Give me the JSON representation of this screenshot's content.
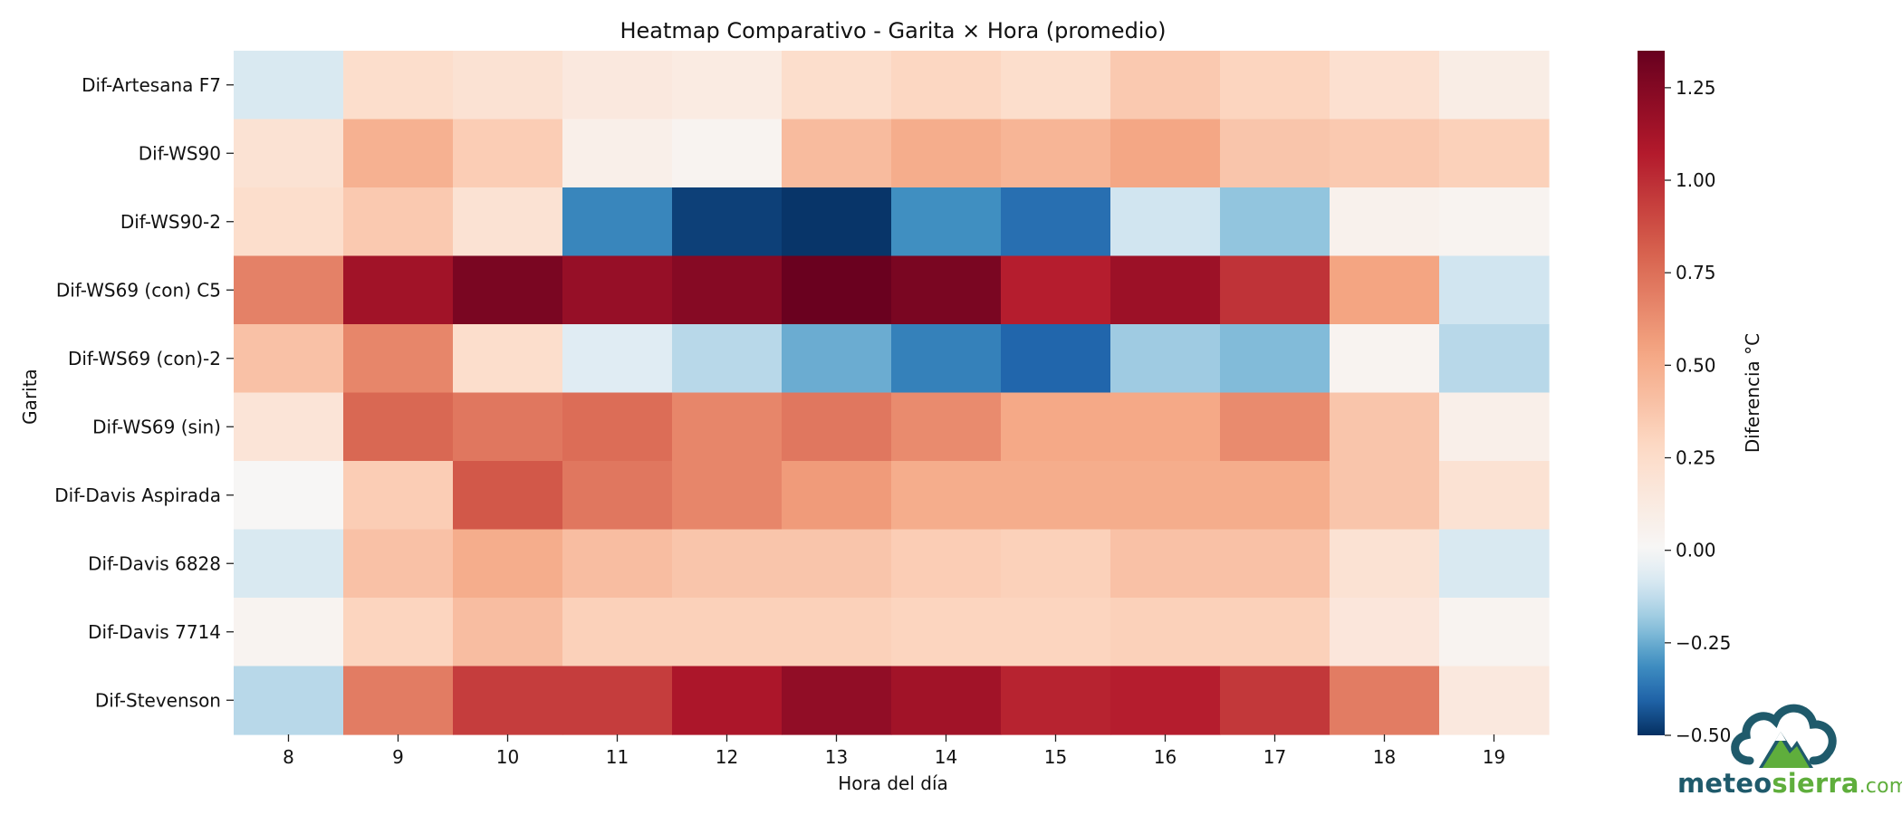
{
  "chart_data": {
    "type": "heatmap",
    "title": "Heatmap Comparativo - Garita × Hora (promedio)",
    "xlabel": "Hora del día",
    "ylabel": "Garita",
    "x_categories": [
      "8",
      "9",
      "10",
      "11",
      "12",
      "13",
      "14",
      "15",
      "16",
      "17",
      "18",
      "19"
    ],
    "y_categories": [
      "Dif-Artesana F7",
      "Dif-WS90",
      "Dif-WS90-2",
      "Dif-WS69 (con) C5",
      "Dif-WS69 (con)-2",
      "Dif-WS69 (sin)",
      "Dif-Davis Aspirada",
      "Dif-Davis 6828",
      "Dif-Davis 7714",
      "Dif-Stevenson"
    ],
    "values": [
      [
        -0.08,
        0.24,
        0.2,
        0.14,
        0.12,
        0.24,
        0.29,
        0.24,
        0.36,
        0.3,
        0.22,
        0.1
      ],
      [
        0.2,
        0.48,
        0.34,
        0.08,
        0.04,
        0.43,
        0.5,
        0.46,
        0.53,
        0.38,
        0.36,
        0.32
      ],
      [
        0.24,
        0.36,
        0.2,
        -0.33,
        -0.47,
        -0.49,
        -0.31,
        -0.38,
        -0.1,
        -0.2,
        0.06,
        0.04
      ],
      [
        0.68,
        1.14,
        1.28,
        1.18,
        1.24,
        1.34,
        1.28,
        1.06,
        1.16,
        0.98,
        0.54,
        -0.1
      ],
      [
        0.4,
        0.66,
        0.24,
        -0.06,
        -0.14,
        -0.25,
        -0.34,
        -0.4,
        -0.18,
        -0.22,
        0.04,
        -0.14
      ],
      [
        0.18,
        0.78,
        0.72,
        0.76,
        0.66,
        0.72,
        0.64,
        0.52,
        0.52,
        0.64,
        0.38,
        0.08
      ],
      [
        0.01,
        0.34,
        0.84,
        0.72,
        0.66,
        0.58,
        0.5,
        0.5,
        0.5,
        0.5,
        0.38,
        0.2
      ],
      [
        -0.08,
        0.4,
        0.5,
        0.42,
        0.38,
        0.38,
        0.34,
        0.32,
        0.4,
        0.4,
        0.2,
        -0.08
      ],
      [
        0.04,
        0.3,
        0.42,
        0.32,
        0.32,
        0.32,
        0.3,
        0.3,
        0.32,
        0.32,
        0.16,
        0.04
      ],
      [
        -0.14,
        0.7,
        0.94,
        0.94,
        1.1,
        1.2,
        1.14,
        1.04,
        1.06,
        0.96,
        0.7,
        0.14
      ]
    ],
    "colormap": "RdBu_r",
    "vmin": -0.5,
    "vmax": 1.35,
    "vcenter": 0.0,
    "colorbar": {
      "label": "Diferencia °C",
      "ticks": [
        "1.25",
        "1.00",
        "0.75",
        "0.50",
        "0.25",
        "0.00",
        "−0.25",
        "−0.50"
      ],
      "tick_values": [
        1.25,
        1.0,
        0.75,
        0.5,
        0.25,
        0.0,
        -0.25,
        -0.5
      ]
    },
    "grid": false
  },
  "logo": {
    "part1": "meteo",
    "part2": "sierra",
    "part3": ".com"
  },
  "colors": {
    "deep_red": "#67001f",
    "red": "#b2182b",
    "salmon": "#f4a582",
    "light_pink": "#fddbc7",
    "white": "#f7f7f7",
    "light_blue": "#d1e5f0",
    "blue": "#92c5de",
    "logo_dark": "#1f5a6b",
    "logo_green": "#5fae3c"
  }
}
